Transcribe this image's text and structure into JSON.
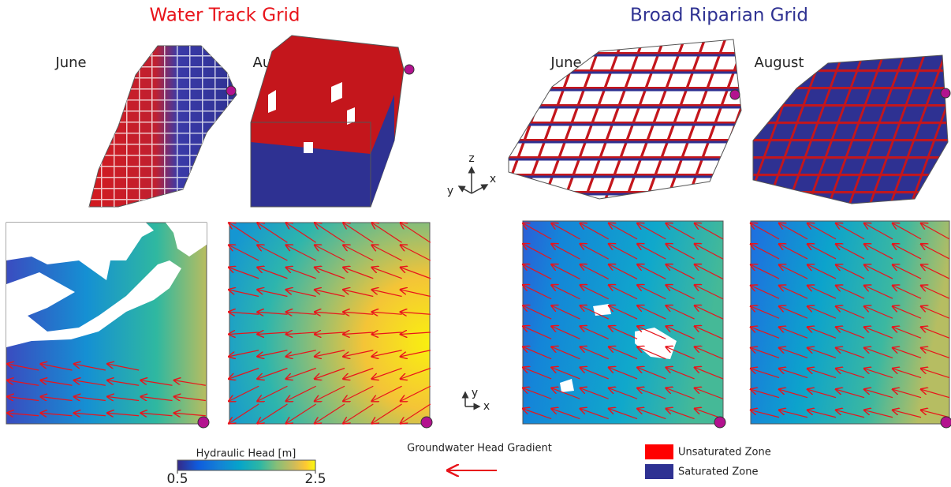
{
  "groups": [
    {
      "title": "Water Track Grid",
      "title_color": "#e8141b",
      "panels": [
        "June",
        "August"
      ]
    },
    {
      "title": "Broad Riparian Grid",
      "title_color": "#2e3192",
      "panels": [
        "June",
        "August"
      ]
    }
  ],
  "axes_3d": {
    "z": "z",
    "x": "x",
    "y": "y"
  },
  "axes_2d": {
    "y": "y",
    "x": "x"
  },
  "colorbar": {
    "label": "Hydraulic Head [m]",
    "lim": [
      0.5,
      2.5
    ],
    "ticks": [
      0.5,
      2.5
    ]
  },
  "gradient_label": "Groundwater Head Gradient",
  "legend": [
    {
      "name": "Unsaturated Zone",
      "color": "#ff0000"
    },
    {
      "name": "Saturated Zone",
      "color": "#2e3192"
    }
  ]
}
